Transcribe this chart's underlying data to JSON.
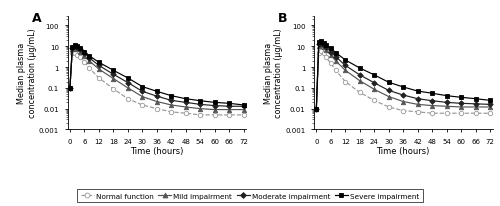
{
  "time_A": [
    0,
    1,
    2,
    3,
    4,
    6,
    8,
    12,
    18,
    24,
    30,
    36,
    42,
    48,
    54,
    60,
    66,
    72
  ],
  "normal_A": [
    0.1,
    4.5,
    5.0,
    4.0,
    3.0,
    1.8,
    0.9,
    0.3,
    0.09,
    0.03,
    0.015,
    0.01,
    0.007,
    0.006,
    0.005,
    0.005,
    0.005,
    0.005
  ],
  "mild_A": [
    0.1,
    7.0,
    8.0,
    7.0,
    5.5,
    3.5,
    2.0,
    0.8,
    0.28,
    0.1,
    0.038,
    0.022,
    0.015,
    0.012,
    0.01,
    0.009,
    0.009,
    0.009
  ],
  "moderate_A": [
    0.1,
    8.5,
    10.0,
    9.0,
    7.0,
    4.5,
    2.8,
    1.2,
    0.45,
    0.18,
    0.068,
    0.04,
    0.025,
    0.02,
    0.016,
    0.014,
    0.013,
    0.013
  ],
  "severe_A": [
    0.1,
    9.5,
    11.0,
    10.0,
    8.0,
    5.5,
    3.5,
    1.7,
    0.7,
    0.3,
    0.115,
    0.068,
    0.042,
    0.03,
    0.024,
    0.02,
    0.018,
    0.015
  ],
  "time_B": [
    0,
    1,
    2,
    3,
    4,
    6,
    8,
    12,
    18,
    24,
    30,
    36,
    42,
    48,
    54,
    60,
    66,
    72
  ],
  "normal_B": [
    0.01,
    5.0,
    6.0,
    4.5,
    3.0,
    1.5,
    0.7,
    0.2,
    0.06,
    0.025,
    0.012,
    0.008,
    0.007,
    0.006,
    0.006,
    0.006,
    0.006,
    0.006
  ],
  "mild_B": [
    0.01,
    10.0,
    12.0,
    9.0,
    6.5,
    3.8,
    2.0,
    0.7,
    0.22,
    0.085,
    0.038,
    0.022,
    0.016,
    0.014,
    0.013,
    0.012,
    0.012,
    0.012
  ],
  "moderate_B": [
    0.01,
    13.0,
    15.0,
    12.0,
    9.0,
    5.5,
    3.2,
    1.2,
    0.42,
    0.175,
    0.075,
    0.045,
    0.03,
    0.024,
    0.02,
    0.018,
    0.017,
    0.016
  ],
  "severe_B": [
    0.01,
    16.0,
    18.0,
    15.0,
    12.0,
    8.0,
    5.0,
    2.2,
    0.9,
    0.42,
    0.185,
    0.11,
    0.07,
    0.055,
    0.042,
    0.035,
    0.03,
    0.025
  ],
  "color_normal": "#999999",
  "color_mild": "#555555",
  "color_moderate": "#222222",
  "color_severe": "#000000",
  "label_A": "A",
  "label_B": "B",
  "ylabel": "Median plasma\nconcentration (μg/mL)",
  "xlabel": "Time (hours)",
  "xticks": [
    0,
    6,
    12,
    18,
    24,
    30,
    36,
    42,
    48,
    54,
    60,
    66,
    72
  ],
  "ylim_log": [
    0.001,
    300
  ],
  "yticks": [
    0.001,
    0.01,
    0.1,
    1,
    10,
    100
  ],
  "legend_labels": [
    "Normal function",
    "Mild impairment",
    "Moderate impairment",
    "Severe impairment"
  ]
}
